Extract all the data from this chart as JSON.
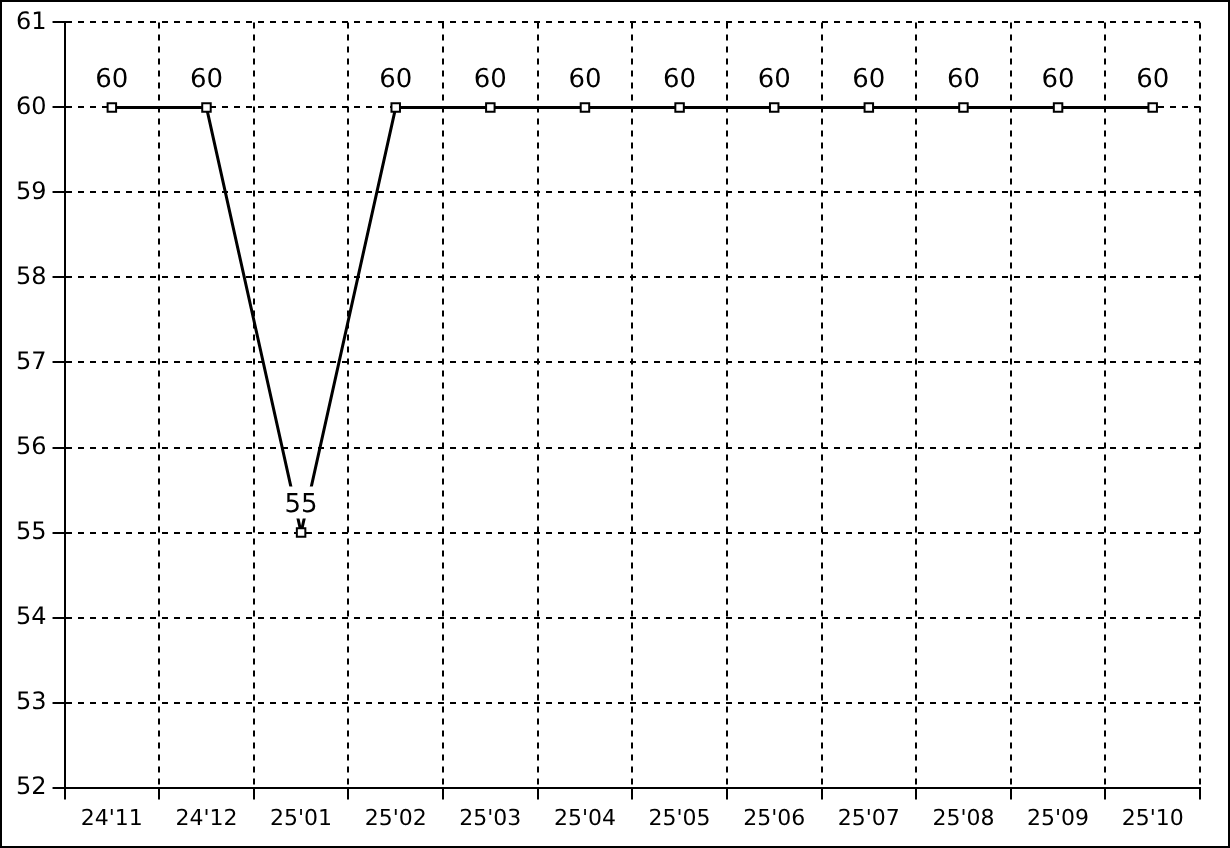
{
  "chart_data": {
    "type": "line",
    "categories": [
      "24'11",
      "24'12",
      "25'01",
      "25'02",
      "25'03",
      "25'04",
      "25'05",
      "25'06",
      "25'07",
      "25'08",
      "25'09",
      "25'10"
    ],
    "series": [
      {
        "color": "#000000",
        "values": [
          60,
          60,
          55,
          60,
          60,
          60,
          60,
          60,
          60,
          60,
          60,
          60
        ]
      }
    ],
    "ylim": [
      52,
      61
    ],
    "yticks": [
      52,
      53,
      54,
      55,
      56,
      57,
      58,
      59,
      60,
      61
    ],
    "grid": true,
    "legend": false,
    "marker": "square",
    "line_style": "solid",
    "data_labels": true
  }
}
